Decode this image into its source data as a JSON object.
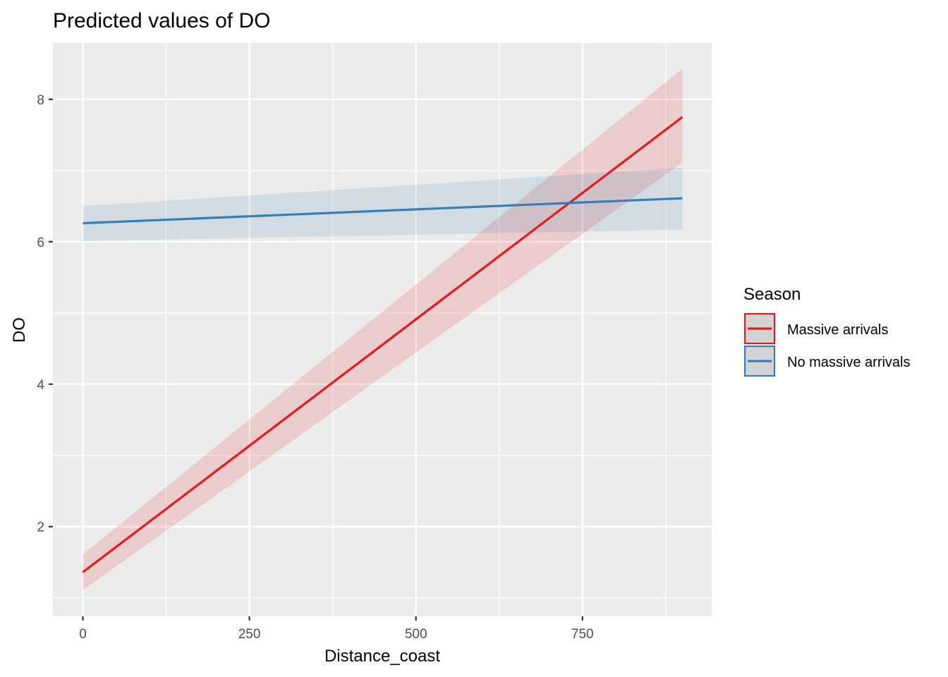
{
  "chart_data": {
    "type": "line",
    "title": "Predicted values of DO",
    "xlabel": "Distance_coast",
    "ylabel": "DO",
    "xlim": [
      -45,
      944
    ],
    "ylim": [
      0.74,
      8.79
    ],
    "x_ticks": [
      0,
      250,
      500,
      750
    ],
    "x_tick_labels": [
      "0",
      "250",
      "500",
      "750"
    ],
    "x_minor_ticks": [
      125,
      375,
      625,
      875
    ],
    "y_ticks": [
      2,
      4,
      6,
      8
    ],
    "y_tick_labels": [
      "2",
      "4",
      "6",
      "8"
    ],
    "y_minor_ticks": [
      1,
      3,
      5,
      7
    ],
    "grid": true,
    "legend": {
      "title": "Season",
      "position": "right"
    },
    "series": [
      {
        "name": "Massive arrivals",
        "color": "#E41A1C",
        "x": [
          0,
          900
        ],
        "y": [
          1.36,
          7.75
        ],
        "ci_low": [
          1.11,
          7.11
        ],
        "ci_high": [
          1.61,
          8.43
        ]
      },
      {
        "name": "No massive arrivals",
        "color": "#377EB8",
        "x": [
          0,
          900
        ],
        "y": [
          6.26,
          6.61
        ],
        "ci_low": [
          6.01,
          6.17
        ],
        "ci_high": [
          6.5,
          7.04
        ]
      }
    ]
  },
  "colors": {
    "panel_background": "#EBEBEB",
    "grid": "#FFFFFF",
    "legend_key_fill": "#D3D3D3"
  }
}
